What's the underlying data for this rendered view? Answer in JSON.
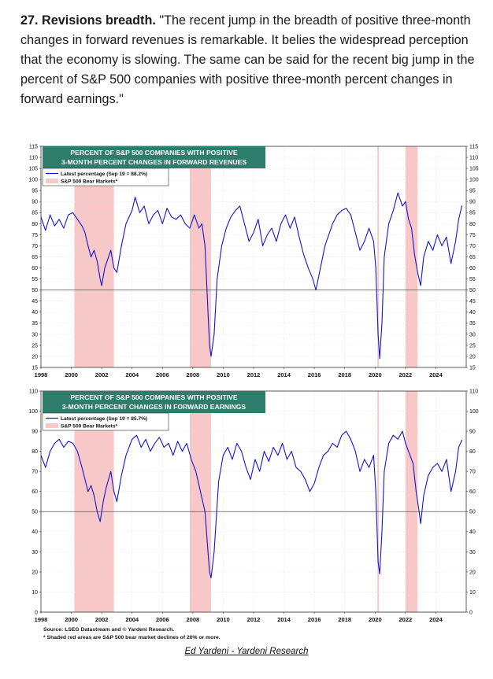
{
  "intro": {
    "heading": "27. Revisions breadth.",
    "text": " \"The recent jump in the breadth of positive three-month changes in forward revenues is remarkable. It belies the widespread perception that the economy is slowing. The same can be said for the recent big jump in the percent of S&P 500 companies with positive three-month percent changes in forward earnings.\""
  },
  "colors": {
    "series": "#1414d2",
    "bear": "#f8c8c8",
    "title_bg": "#2e7d6b"
  },
  "chart_data": [
    {
      "type": "line",
      "title_line1": "PERCENT OF S&P 500 COMPANIES WITH POSITIVE",
      "title_line2": "3-MONTH PERCENT CHANGES IN FORWARD REVENUES",
      "legend_series": "Latest percentage (Sep 19 = 88.2%)",
      "legend_bear": "S&P 500 Bear Markets*",
      "xlim": [
        1998,
        2026
      ],
      "ylim": [
        15,
        115
      ],
      "yticks": [
        "15",
        "20",
        "25",
        "30",
        "35",
        "40",
        "45",
        "50",
        "55",
        "60",
        "65",
        "70",
        "75",
        "80",
        "85",
        "90",
        "95",
        "100",
        "105",
        "110",
        "115"
      ],
      "xticks": [
        "1998",
        "2000",
        "2002",
        "2004",
        "2006",
        "2008",
        "2010",
        "2012",
        "2014",
        "2016",
        "2018",
        "2020",
        "2022",
        "2024"
      ],
      "reference_line": 50,
      "bear_markets": [
        [
          2000.2,
          2002.8
        ],
        [
          2007.8,
          2009.2
        ],
        [
          2020.15,
          2020.25
        ],
        [
          2022.0,
          2022.8
        ]
      ],
      "series": [
        {
          "name": "Latest percentage",
          "points": [
            [
              1998.0,
              83
            ],
            [
              1998.3,
              77
            ],
            [
              1998.6,
              84
            ],
            [
              1998.9,
              79
            ],
            [
              1999.2,
              82
            ],
            [
              1999.5,
              78
            ],
            [
              1999.8,
              84
            ],
            [
              2000.1,
              85
            ],
            [
              2000.4,
              82
            ],
            [
              2000.7,
              79
            ],
            [
              2000.9,
              76
            ],
            [
              2001.1,
              70
            ],
            [
              2001.3,
              65
            ],
            [
              2001.5,
              68
            ],
            [
              2001.7,
              63
            ],
            [
              2001.9,
              55
            ],
            [
              2002.0,
              52
            ],
            [
              2002.2,
              60
            ],
            [
              2002.4,
              64
            ],
            [
              2002.6,
              68
            ],
            [
              2002.8,
              60
            ],
            [
              2003.0,
              58
            ],
            [
              2003.3,
              70
            ],
            [
              2003.6,
              80
            ],
            [
              2004.0,
              86
            ],
            [
              2004.2,
              92
            ],
            [
              2004.5,
              85
            ],
            [
              2004.8,
              88
            ],
            [
              2005.1,
              80
            ],
            [
              2005.4,
              84
            ],
            [
              2005.7,
              86
            ],
            [
              2006.0,
              80
            ],
            [
              2006.3,
              87
            ],
            [
              2006.6,
              83
            ],
            [
              2006.9,
              82
            ],
            [
              2007.2,
              84
            ],
            [
              2007.5,
              80
            ],
            [
              2007.8,
              78
            ],
            [
              2008.1,
              84
            ],
            [
              2008.4,
              78
            ],
            [
              2008.6,
              80
            ],
            [
              2008.8,
              70
            ],
            [
              2009.0,
              40
            ],
            [
              2009.1,
              25
            ],
            [
              2009.2,
              20
            ],
            [
              2009.4,
              30
            ],
            [
              2009.6,
              55
            ],
            [
              2009.9,
              70
            ],
            [
              2010.2,
              78
            ],
            [
              2010.5,
              83
            ],
            [
              2010.8,
              86
            ],
            [
              2011.1,
              88
            ],
            [
              2011.4,
              80
            ],
            [
              2011.7,
              72
            ],
            [
              2012.0,
              76
            ],
            [
              2012.3,
              82
            ],
            [
              2012.6,
              70
            ],
            [
              2012.9,
              75
            ],
            [
              2013.2,
              78
            ],
            [
              2013.5,
              72
            ],
            [
              2013.8,
              80
            ],
            [
              2014.1,
              84
            ],
            [
              2014.4,
              78
            ],
            [
              2014.7,
              83
            ],
            [
              2015.0,
              74
            ],
            [
              2015.3,
              66
            ],
            [
              2015.6,
              60
            ],
            [
              2015.9,
              55
            ],
            [
              2016.1,
              50
            ],
            [
              2016.4,
              60
            ],
            [
              2016.7,
              70
            ],
            [
              2016.9,
              74
            ],
            [
              2017.2,
              80
            ],
            [
              2017.5,
              84
            ],
            [
              2017.8,
              86
            ],
            [
              2018.1,
              87
            ],
            [
              2018.4,
              84
            ],
            [
              2018.7,
              76
            ],
            [
              2019.0,
              68
            ],
            [
              2019.3,
              72
            ],
            [
              2019.6,
              78
            ],
            [
              2019.9,
              72
            ],
            [
              2020.05,
              60
            ],
            [
              2020.2,
              30
            ],
            [
              2020.3,
              19
            ],
            [
              2020.45,
              35
            ],
            [
              2020.6,
              65
            ],
            [
              2020.9,
              80
            ],
            [
              2021.2,
              86
            ],
            [
              2021.5,
              94
            ],
            [
              2021.8,
              88
            ],
            [
              2022.0,
              90
            ],
            [
              2022.2,
              82
            ],
            [
              2022.4,
              78
            ],
            [
              2022.6,
              66
            ],
            [
              2022.8,
              58
            ],
            [
              2023.0,
              52
            ],
            [
              2023.2,
              65
            ],
            [
              2023.5,
              72
            ],
            [
              2023.8,
              68
            ],
            [
              2024.1,
              75
            ],
            [
              2024.4,
              70
            ],
            [
              2024.7,
              74
            ],
            [
              2025.0,
              62
            ],
            [
              2025.3,
              72
            ],
            [
              2025.5,
              82
            ],
            [
              2025.72,
              88.2
            ]
          ]
        }
      ]
    },
    {
      "type": "line",
      "title_line1": "PERCENT OF S&P 500 COMPANIES WITH POSITIVE",
      "title_line2": "3-MONTH PERCENT CHANGES IN FORWARD EARNINGS",
      "legend_series": "Latest percentage (Sep 19 = 85.7%)",
      "legend_bear": "S&P 500 Bear Markets*",
      "xlim": [
        1998,
        2026
      ],
      "ylim": [
        0,
        110
      ],
      "yticks": [
        "0",
        "10",
        "20",
        "30",
        "40",
        "50",
        "60",
        "70",
        "80",
        "90",
        "100",
        "110"
      ],
      "xticks": [
        "1998",
        "2000",
        "2002",
        "2004",
        "2006",
        "2008",
        "2010",
        "2012",
        "2014",
        "2016",
        "2018",
        "2020",
        "2022",
        "2024"
      ],
      "reference_line": 50,
      "bear_markets": [
        [
          2000.2,
          2002.8
        ],
        [
          2007.8,
          2009.2
        ],
        [
          2020.15,
          2020.25
        ],
        [
          2022.0,
          2022.8
        ]
      ],
      "series": [
        {
          "name": "Latest percentage",
          "points": [
            [
              1998.0,
              78
            ],
            [
              1998.3,
              72
            ],
            [
              1998.6,
              80
            ],
            [
              1998.9,
              84
            ],
            [
              1999.2,
              86
            ],
            [
              1999.5,
              82
            ],
            [
              1999.8,
              85
            ],
            [
              2000.1,
              84
            ],
            [
              2000.4,
              80
            ],
            [
              2000.7,
              72
            ],
            [
              2000.9,
              66
            ],
            [
              2001.1,
              60
            ],
            [
              2001.3,
              63
            ],
            [
              2001.5,
              58
            ],
            [
              2001.7,
              50
            ],
            [
              2001.9,
              45
            ],
            [
              2002.1,
              55
            ],
            [
              2002.3,
              62
            ],
            [
              2002.6,
              70
            ],
            [
              2002.8,
              60
            ],
            [
              2003.0,
              55
            ],
            [
              2003.3,
              68
            ],
            [
              2003.6,
              78
            ],
            [
              2004.0,
              86
            ],
            [
              2004.3,
              88
            ],
            [
              2004.6,
              82
            ],
            [
              2004.9,
              86
            ],
            [
              2005.2,
              80
            ],
            [
              2005.5,
              84
            ],
            [
              2005.8,
              87
            ],
            [
              2006.1,
              82
            ],
            [
              2006.4,
              84
            ],
            [
              2006.7,
              78
            ],
            [
              2007.0,
              85
            ],
            [
              2007.3,
              80
            ],
            [
              2007.6,
              84
            ],
            [
              2007.9,
              76
            ],
            [
              2008.2,
              70
            ],
            [
              2008.5,
              60
            ],
            [
              2008.8,
              50
            ],
            [
              2009.0,
              30
            ],
            [
              2009.1,
              20
            ],
            [
              2009.2,
              17
            ],
            [
              2009.4,
              30
            ],
            [
              2009.7,
              65
            ],
            [
              2010.0,
              78
            ],
            [
              2010.3,
              82
            ],
            [
              2010.6,
              76
            ],
            [
              2010.9,
              84
            ],
            [
              2011.2,
              80
            ],
            [
              2011.5,
              72
            ],
            [
              2011.8,
              66
            ],
            [
              2012.1,
              76
            ],
            [
              2012.4,
              70
            ],
            [
              2012.7,
              80
            ],
            [
              2013.0,
              75
            ],
            [
              2013.3,
              82
            ],
            [
              2013.6,
              78
            ],
            [
              2013.9,
              84
            ],
            [
              2014.2,
              76
            ],
            [
              2014.5,
              80
            ],
            [
              2014.8,
              72
            ],
            [
              2015.1,
              70
            ],
            [
              2015.4,
              66
            ],
            [
              2015.7,
              60
            ],
            [
              2016.0,
              64
            ],
            [
              2016.3,
              72
            ],
            [
              2016.6,
              78
            ],
            [
              2016.9,
              80
            ],
            [
              2017.2,
              84
            ],
            [
              2017.5,
              82
            ],
            [
              2017.8,
              88
            ],
            [
              2018.1,
              90
            ],
            [
              2018.4,
              86
            ],
            [
              2018.7,
              80
            ],
            [
              2019.0,
              70
            ],
            [
              2019.3,
              76
            ],
            [
              2019.6,
              72
            ],
            [
              2019.9,
              78
            ],
            [
              2020.05,
              60
            ],
            [
              2020.2,
              25
            ],
            [
              2020.3,
              19
            ],
            [
              2020.45,
              40
            ],
            [
              2020.6,
              70
            ],
            [
              2020.9,
              84
            ],
            [
              2021.2,
              88
            ],
            [
              2021.5,
              86
            ],
            [
              2021.8,
              90
            ],
            [
              2022.0,
              84
            ],
            [
              2022.2,
              80
            ],
            [
              2022.5,
              74
            ],
            [
              2022.7,
              60
            ],
            [
              2022.9,
              50
            ],
            [
              2023.0,
              44
            ],
            [
              2023.2,
              58
            ],
            [
              2023.5,
              68
            ],
            [
              2023.8,
              72
            ],
            [
              2024.1,
              74
            ],
            [
              2024.4,
              70
            ],
            [
              2024.7,
              76
            ],
            [
              2025.0,
              60
            ],
            [
              2025.3,
              70
            ],
            [
              2025.5,
              82
            ],
            [
              2025.72,
              85.7
            ]
          ]
        }
      ]
    }
  ],
  "footer": {
    "source": "Source: LSEG Datastream and © Yardeni Research.",
    "note": "* Shaded red areas are S&P 500 bear market declines of 20% or more.",
    "attribution": "Ed Yardeni - Yardeni Research"
  }
}
